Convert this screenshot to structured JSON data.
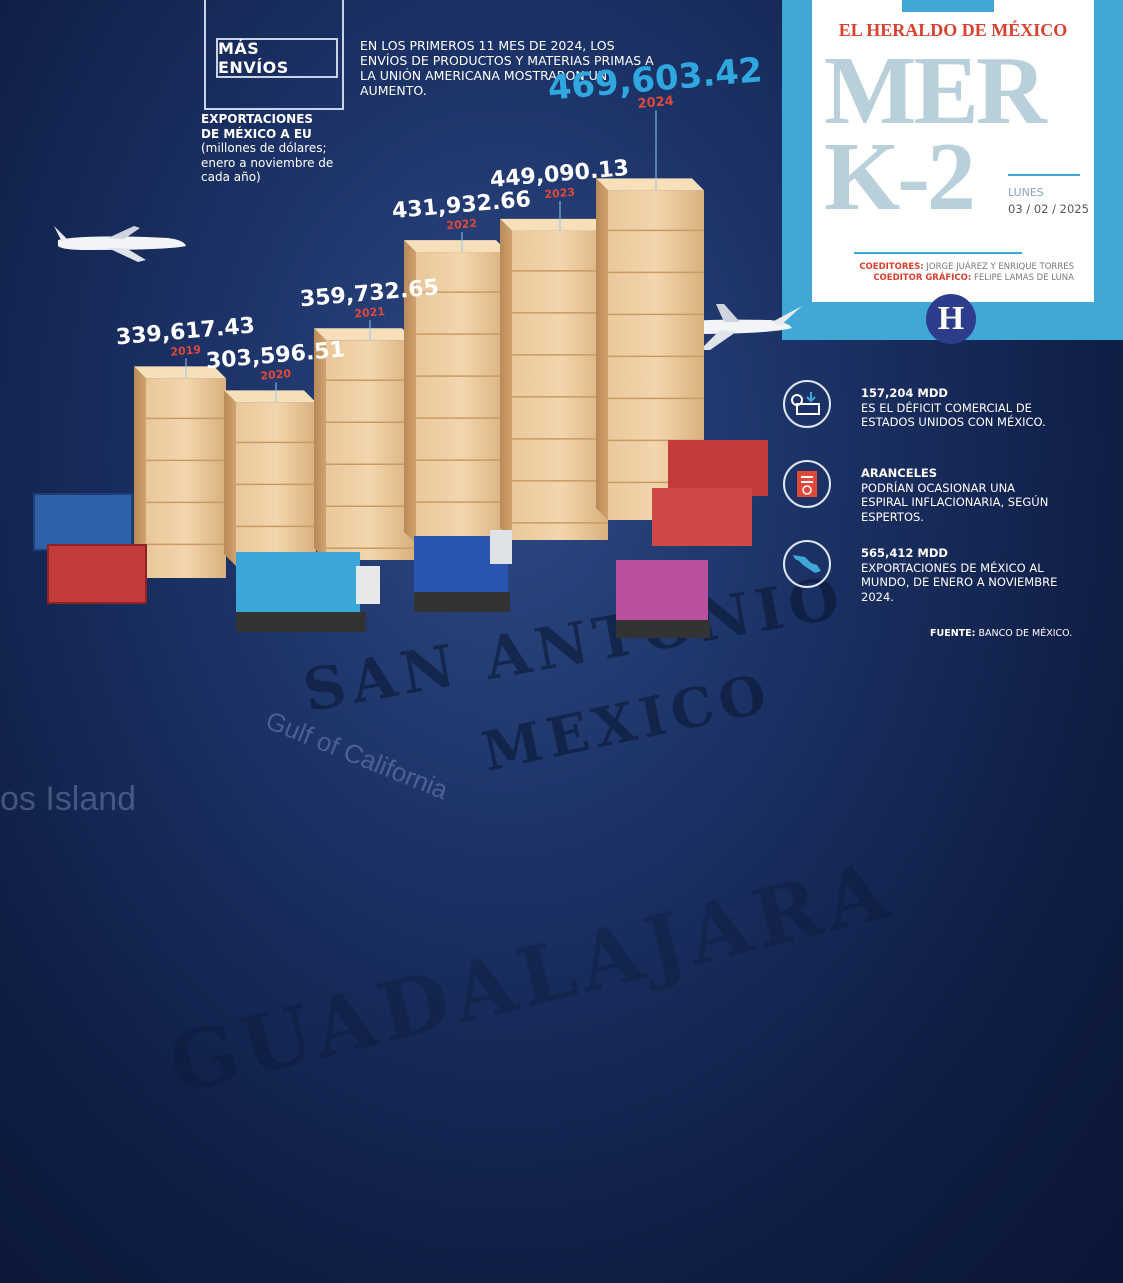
{
  "header": {
    "badge": "MÁS ENVÍOS",
    "intro": "EN LOS PRIMEROS 11 MES DE 2024, LOS ENVÍOS DE PRODUCTOS Y MATERIAS PRIMAS A LA UNIÓN AMERICANA MOSTRARON UN AUMENTO."
  },
  "chart_caption": {
    "title_line1": "EXPORTACIONES",
    "title_line2": "DE MÉXICO A EU",
    "subtitle": "(millones de dólares; enero a noviembre de cada año)"
  },
  "masthead": {
    "publication": "EL HERALDO DE MÉXICO",
    "section_line1": "MER",
    "section_line2": "K-2",
    "day": "LUNES",
    "date": "03 / 02 / 2025",
    "coeditors_label": "COEDITORES:",
    "coeditors": "JORGE JUÁREZ Y ENRIQUE TORRES",
    "graphic_label": "COEDITOR GRÁFICO:",
    "graphic": "FELIPE LAMAS DE LUNA",
    "logo": "H"
  },
  "chart_data": {
    "type": "bar",
    "categories": [
      "2019",
      "2020",
      "2021",
      "2022",
      "2023",
      "2024"
    ],
    "values": [
      339617.43,
      303596.51,
      359732.65,
      431932.66,
      449090.13,
      469603.42
    ],
    "value_labels": [
      "339,617.43",
      "303,596.51",
      "359,732.65",
      "431,932.66",
      "449,090.13",
      "469,603.42"
    ],
    "title": "EXPORTACIONES DE MÉXICO A EU",
    "ylabel": "(millones de dólares; enero a noviembre de cada año)",
    "highlight_color": "#2fa8e0",
    "year_color": "#e0493a"
  },
  "facts": [
    {
      "icon": "dollar-exchange-icon",
      "title": "157,204 MDD",
      "text": "ES EL DÉFICIT COMERCIAL DE ESTADOS UNIDOS CON MÉXICO."
    },
    {
      "icon": "receipt-icon",
      "title": "ARANCELES",
      "text": "PODRÍAN OCASIONAR UNA ESPIRAL INFLACIONARIA, SEGÚN ESPERTOS."
    },
    {
      "icon": "mexico-map-icon",
      "title": "565,412 MDD",
      "text": "EXPORTACIONES DE MÉXICO AL MUNDO, DE ENERO A NOVIEMBRE 2024."
    }
  ],
  "source": {
    "label": "FUENTE:",
    "text": "BANCO DE MÉXICO."
  },
  "colors": {
    "accent": "#3fa8d6",
    "red": "#d8402f",
    "background": "#1c3266"
  }
}
